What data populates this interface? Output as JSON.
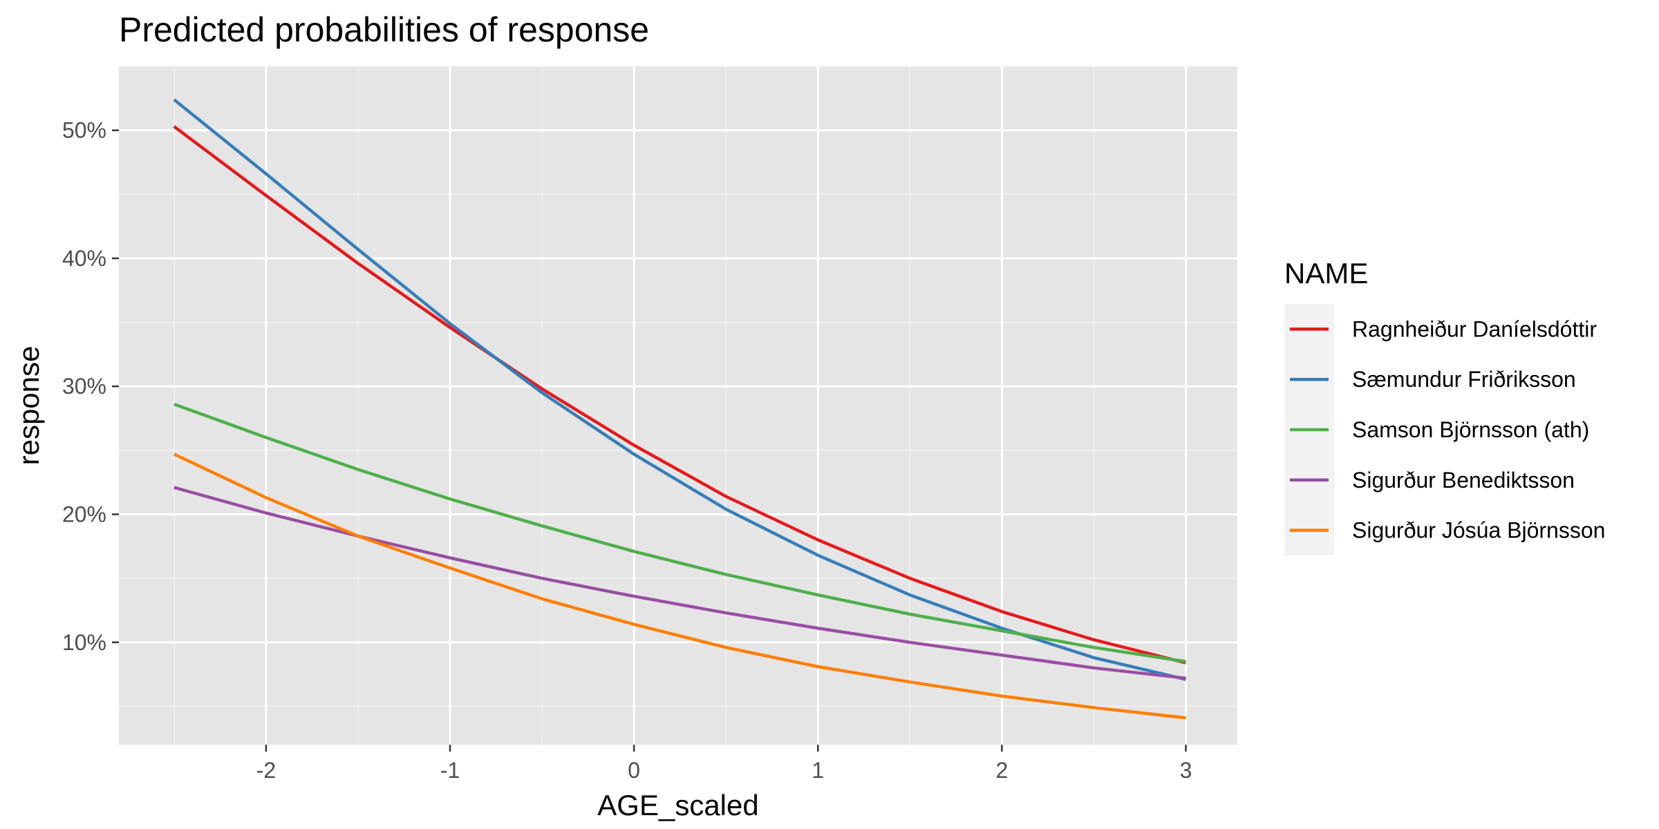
{
  "chart_data": {
    "type": "line",
    "title": "Predicted probabilities of response",
    "xlabel": "AGE_scaled",
    "ylabel": "response",
    "xlim": [
      -2.8,
      3.28
    ],
    "ylim": [
      0.02,
      0.55
    ],
    "x_ticks": [
      -2,
      -1,
      0,
      1,
      2,
      3
    ],
    "x_tick_labels": [
      "-2",
      "-1",
      "0",
      "1",
      "2",
      "3"
    ],
    "y_ticks": [
      0.1,
      0.2,
      0.3,
      0.4,
      0.5
    ],
    "y_tick_labels": [
      "10%",
      "20%",
      "30%",
      "40%",
      "50%"
    ],
    "grid": true,
    "legend": {
      "title": "NAME",
      "position": "right"
    },
    "x": [
      -2.5,
      -2.0,
      -1.5,
      -1.0,
      -0.5,
      0.0,
      0.5,
      1.0,
      1.5,
      2.0,
      2.5,
      3.0
    ],
    "series": [
      {
        "name": "Ragnheiður Daníelsdóttir",
        "color": "#e41a1c",
        "values": [
          0.503,
          0.449,
          0.396,
          0.346,
          0.298,
          0.254,
          0.214,
          0.18,
          0.15,
          0.124,
          0.102,
          0.084
        ]
      },
      {
        "name": "Sæmundur Friðriksson",
        "color": "#377eb8",
        "values": [
          0.524,
          0.466,
          0.407,
          0.349,
          0.295,
          0.247,
          0.204,
          0.168,
          0.137,
          0.111,
          0.088,
          0.071
        ]
      },
      {
        "name": "Samson Björnsson (ath)",
        "color": "#4daf4a",
        "values": [
          0.286,
          0.26,
          0.235,
          0.212,
          0.191,
          0.171,
          0.153,
          0.137,
          0.122,
          0.109,
          0.096,
          0.085
        ]
      },
      {
        "name": "Sigurður Benediktsson",
        "color": "#984ea3",
        "values": [
          0.221,
          0.201,
          0.183,
          0.166,
          0.15,
          0.136,
          0.123,
          0.111,
          0.1,
          0.09,
          0.08,
          0.072
        ]
      },
      {
        "name": "Sigurður Jósúa Björnsson",
        "color": "#ff7f00",
        "values": [
          0.247,
          0.213,
          0.183,
          0.158,
          0.134,
          0.114,
          0.096,
          0.081,
          0.069,
          0.058,
          0.049,
          0.041
        ]
      }
    ]
  }
}
